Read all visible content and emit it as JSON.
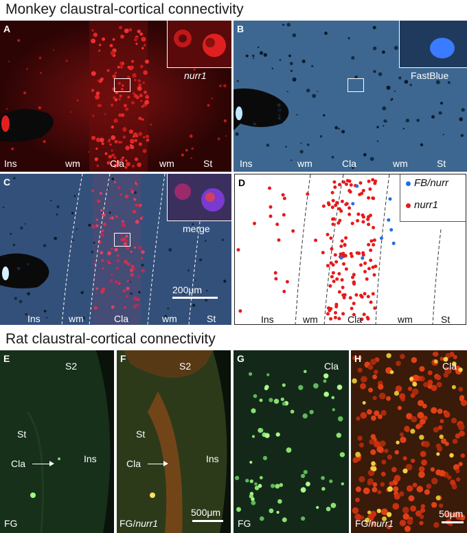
{
  "monkey": {
    "title": "Monkey claustral-cortical connectivity",
    "regions": [
      "Ins",
      "wm",
      "Cla",
      "wm",
      "St"
    ],
    "panelA": {
      "label": "A",
      "inset_caption": "nurr1"
    },
    "panelB": {
      "label": "B",
      "inset_caption": "FastBlue"
    },
    "panelC": {
      "label": "C",
      "inset_caption": "merge",
      "scale": "200μm"
    },
    "panelD": {
      "label": "D",
      "legend": [
        "FB/nurr",
        "nurr1"
      ],
      "colors": {
        "fb": "#1f6fe8",
        "nurr": "#e8191b"
      }
    }
  },
  "rat": {
    "title": "Rat claustral-cortical connectivity",
    "panelE": {
      "label": "E",
      "s2": "S2",
      "st": "St",
      "cla": "Cla",
      "ins": "Ins",
      "stain": "FG"
    },
    "panelF": {
      "label": "F",
      "s2": "S2",
      "st": "St",
      "cla": "Cla",
      "ins": "Ins",
      "stain_prefix": "FG/",
      "stain_gene": "nurr1",
      "scale": "500μm"
    },
    "panelG": {
      "label": "G",
      "cla": "Cla",
      "stain": "FG"
    },
    "panelH": {
      "label": "H",
      "cla": "Cla",
      "stain_prefix": "FG/",
      "stain_gene": "nurr1",
      "scale": "50μm"
    }
  }
}
